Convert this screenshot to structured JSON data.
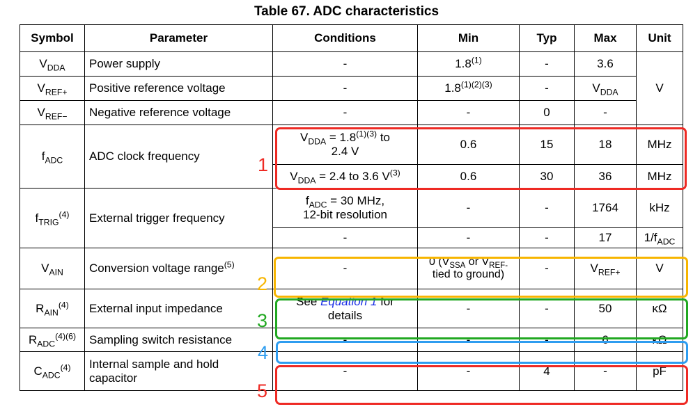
{
  "title": "Table 67. ADC characteristics",
  "headers": {
    "symbol": "Symbol",
    "parameter": "Parameter",
    "conditions": "Conditions",
    "min": "Min",
    "typ": "Typ",
    "max": "Max",
    "unit": "Unit"
  },
  "rows": {
    "vdda": {
      "sym": "V",
      "sym_sub": "DDA",
      "param": "Power supply",
      "cond": "-",
      "min": "1.8",
      "min_sup": "(1)",
      "typ": "-",
      "max": "3.6"
    },
    "vref_plus": {
      "sym": "V",
      "sym_sub": "REF+",
      "param": "Positive reference voltage",
      "cond": "-",
      "min": "1.8",
      "min_sup": "(1)(2)(3)",
      "typ": "-",
      "max": "V",
      "max_sub": "DDA"
    },
    "vref_minus": {
      "sym": "V",
      "sym_sub": "REF−",
      "param": "Negative reference voltage",
      "cond": "-",
      "min": "-",
      "typ": "0",
      "max": "-"
    },
    "voltage_unit": "V",
    "fadc": {
      "sym": "f",
      "sym_sub": "ADC",
      "param": "ADC clock frequency",
      "cond1_a": "V",
      "cond1_sub": "DDA",
      "cond1_b": " = 1.8",
      "cond1_sup": "(1)(3)",
      "cond1_c": " to",
      "cond1_d": "2.4 V",
      "min1": "0.6",
      "typ1": "15",
      "max1": "18",
      "unit1": "MHz",
      "cond2_a": "V",
      "cond2_sub": "DDA",
      "cond2_b": " = 2.4 to 3.6 V",
      "cond2_sup": "(3)",
      "min2": "0.6",
      "typ2": "30",
      "max2": "36",
      "unit2": "MHz"
    },
    "ftrig": {
      "sym": "f",
      "sym_sub": "TRIG",
      "sym_sup": "(4)",
      "param": "External trigger frequency",
      "cond1_a": "f",
      "cond1_sub": "ADC",
      "cond1_b": " = 30 MHz,",
      "cond1_c": "12-bit resolution",
      "min1": "-",
      "typ1": "-",
      "max1": "1764",
      "unit1": "kHz",
      "cond2": "-",
      "min2": "-",
      "typ2": "-",
      "max2": "17",
      "unit2_a": "1/f",
      "unit2_sub": "ADC"
    },
    "vain": {
      "sym": "V",
      "sym_sub": "AIN",
      "param": "Conversion voltage range",
      "param_sup": "(5)",
      "cond": "-",
      "min_a": "0 (V",
      "min_sub1": "SSA",
      "min_b": " or V",
      "min_sub2": "REF-",
      "min_c": "tied to ground)",
      "typ": "-",
      "max": "V",
      "max_sub": "REF+",
      "unit": "V"
    },
    "rain": {
      "sym": "R",
      "sym_sub": "AIN",
      "sym_sup": "(4)",
      "param": "External input impedance",
      "cond_a": "See ",
      "cond_link": "Equation 1",
      "cond_b": " for",
      "cond_c": "details",
      "min": "-",
      "typ": "-",
      "max": "50",
      "unit": "κΩ"
    },
    "radc": {
      "sym": "R",
      "sym_sub": "ADC",
      "sym_sup": "(4)(6)",
      "param": "Sampling switch resistance",
      "cond": "-",
      "min": "-",
      "typ": "-",
      "max": "6",
      "unit": "κΩ"
    },
    "cadc": {
      "sym": "C",
      "sym_sub": "ADC",
      "sym_sup": "(4)",
      "param_a": "Internal sample and hold",
      "param_b": "capacitor",
      "cond": "-",
      "min": "-",
      "typ": "4",
      "max": "-",
      "unit": "pF"
    }
  },
  "highlights": [
    {
      "label": "1",
      "color": "#ee2a24"
    },
    {
      "label": "2",
      "color": "#f7b500"
    },
    {
      "label": "3",
      "color": "#21a821"
    },
    {
      "label": "4",
      "color": "#2e9df0"
    },
    {
      "label": "5",
      "color": "#ee2a24"
    }
  ]
}
